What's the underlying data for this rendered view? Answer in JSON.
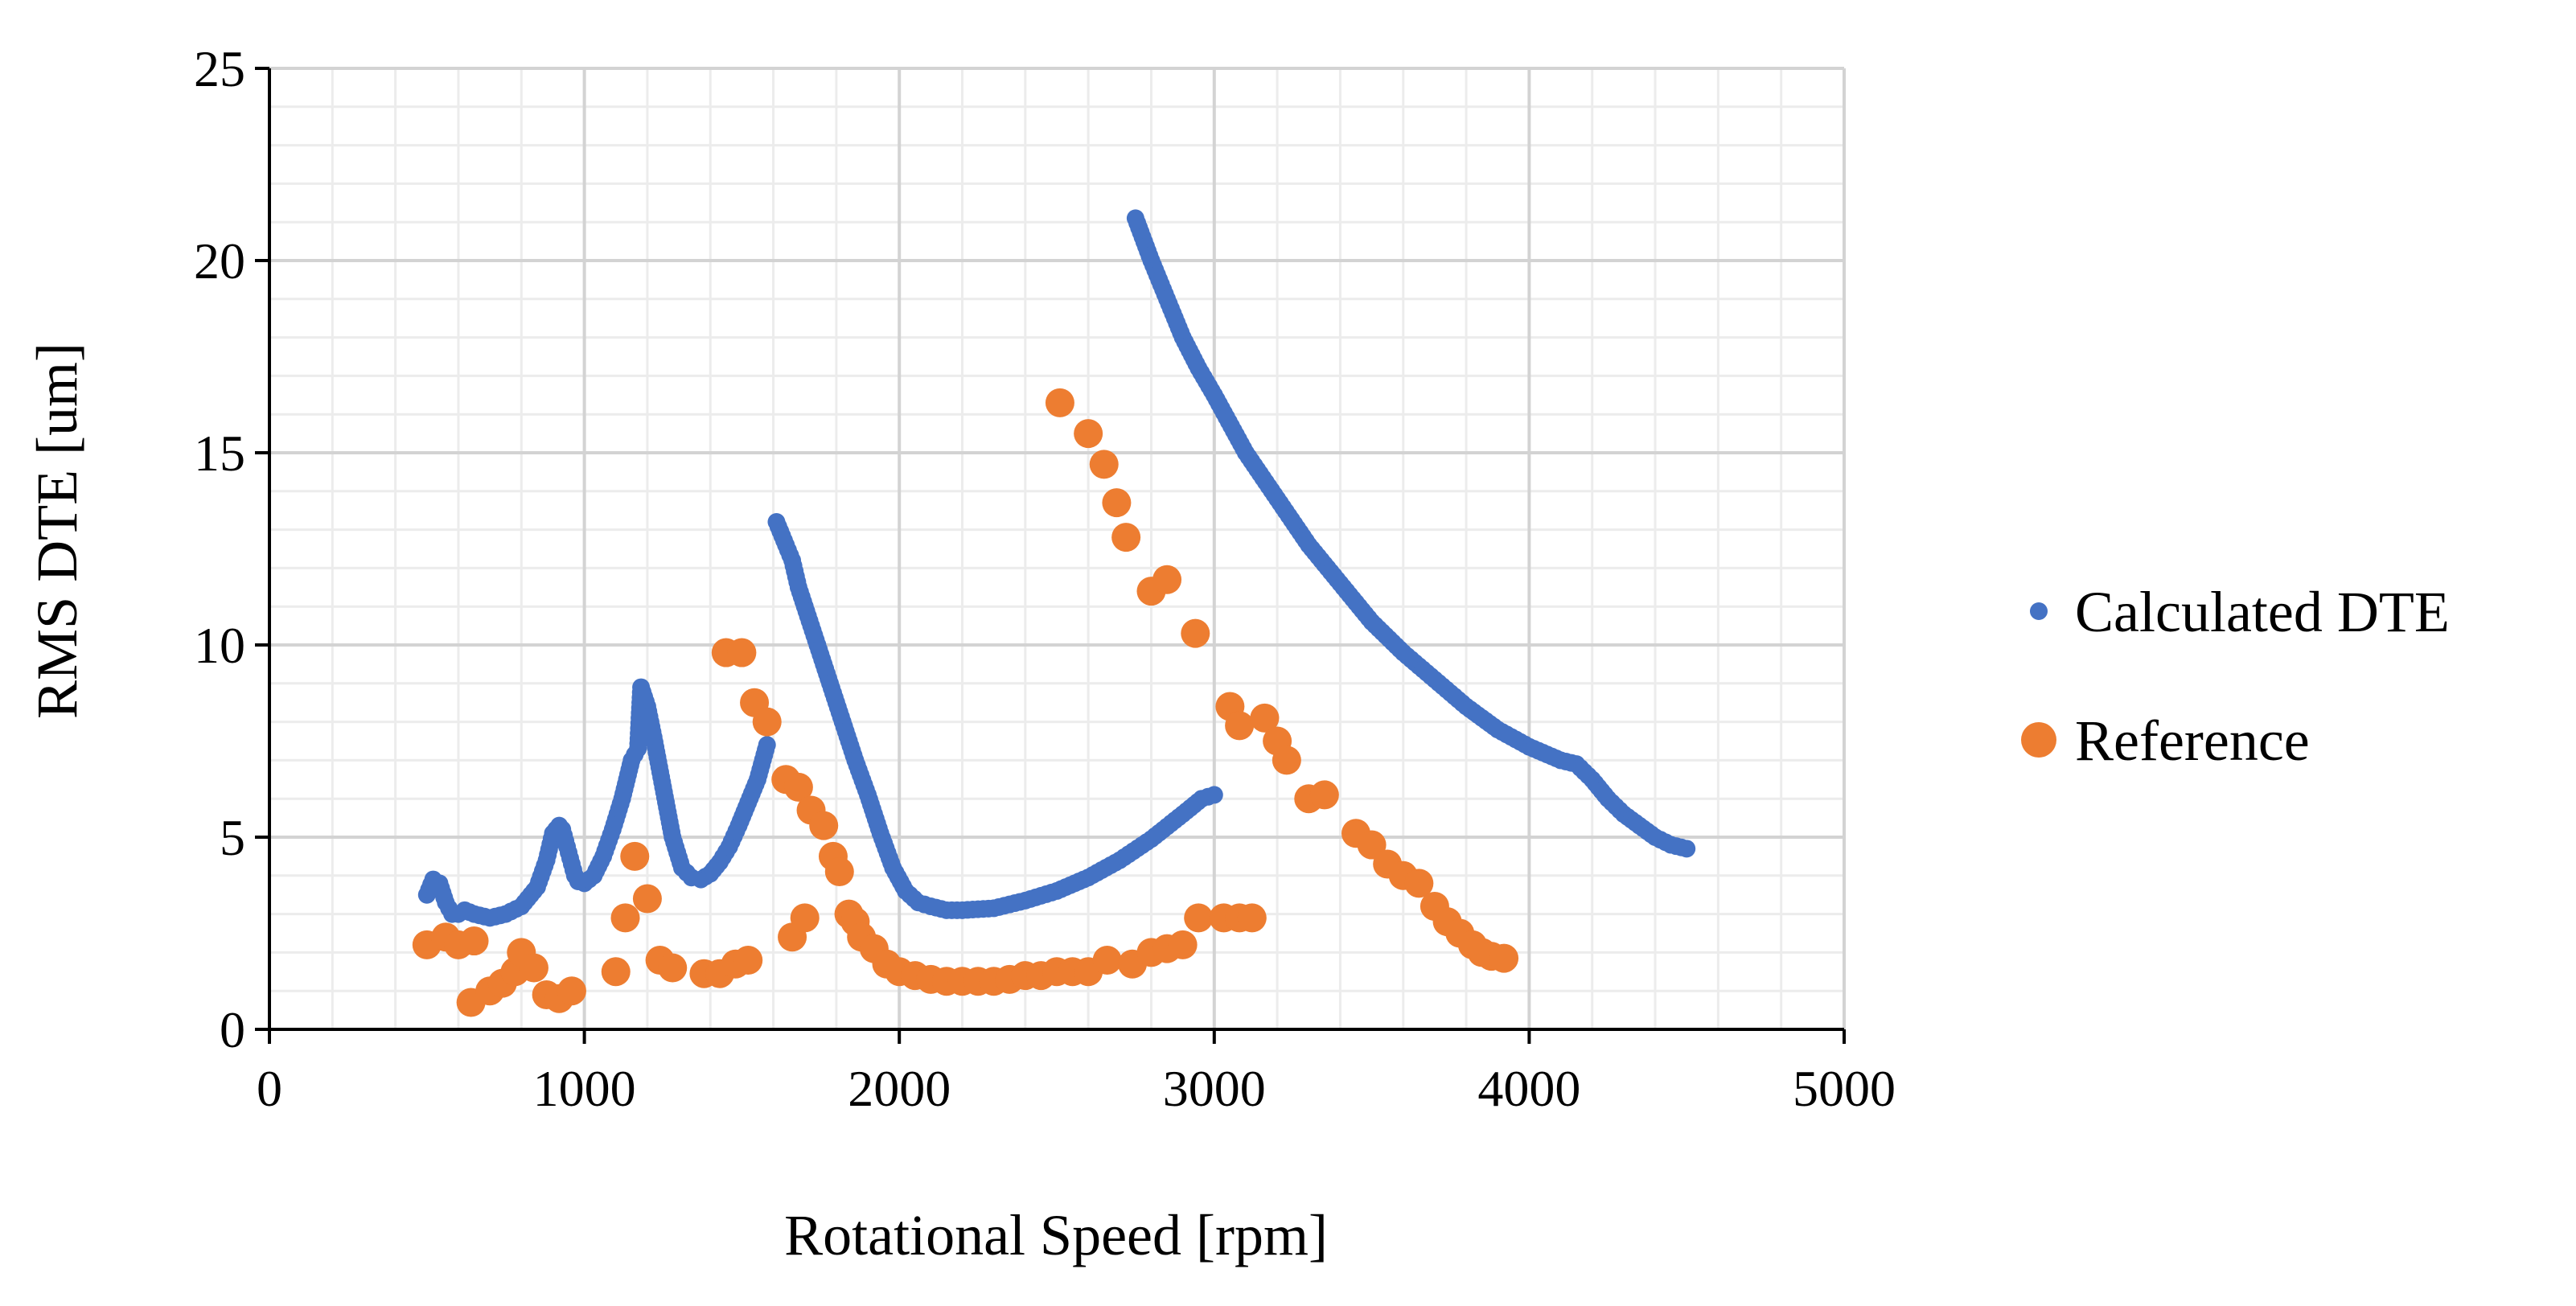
{
  "chart_data": {
    "type": "scatter",
    "title": "",
    "xlabel": "Rotational Speed [rpm]",
    "ylabel": "RMS DTE [um]",
    "xlim": [
      0,
      5000
    ],
    "ylim": [
      0,
      25
    ],
    "x_ticks": [
      0,
      1000,
      2000,
      3000,
      4000,
      5000
    ],
    "y_ticks": [
      0,
      5,
      10,
      15,
      20,
      25
    ],
    "x_tick_labels": [
      "0",
      "1000",
      "2000",
      "3000",
      "4000",
      "5000"
    ],
    "y_tick_labels": [
      "0",
      "5",
      "10",
      "15",
      "20",
      "25"
    ],
    "grid": "major and minor",
    "legend_position": "right",
    "series": [
      {
        "name": "Calculated DTE",
        "color": "#4472C4",
        "marker": "small-dot",
        "x": [
          500,
          520,
          540,
          560,
          580,
          600,
          620,
          650,
          700,
          750,
          800,
          850,
          880,
          900,
          920,
          930,
          950,
          970,
          980,
          1000,
          1030,
          1060,
          1090,
          1120,
          1150,
          1170,
          1180,
          1200,
          1220,
          1250,
          1280,
          1310,
          1340,
          1370,
          1400,
          1430,
          1460,
          1490,
          1520,
          1550,
          1580,
          1610,
          1640,
          1660,
          1680,
          1700,
          1740,
          1780,
          1820,
          1860,
          1900,
          1940,
          1980,
          2020,
          2060,
          2100,
          2150,
          2200,
          2300,
          2400,
          2500,
          2600,
          2700,
          2800,
          2900,
          2960,
          3000,
          2750,
          2800,
          2850,
          2900,
          2950,
          3000,
          3100,
          3200,
          3300,
          3400,
          3500,
          3600,
          3700,
          3800,
          3900,
          4000,
          4100,
          4150,
          4200,
          4250,
          4300,
          4350,
          4400,
          4450,
          4500
        ],
        "y": [
          3.5,
          3.9,
          3.8,
          3.3,
          3.0,
          3.0,
          3.1,
          3.0,
          2.9,
          3.0,
          3.2,
          3.7,
          4.4,
          5.1,
          5.3,
          5.2,
          4.6,
          4.0,
          3.85,
          3.8,
          4.0,
          4.5,
          5.2,
          6.0,
          7.0,
          7.3,
          8.9,
          8.4,
          7.6,
          6.3,
          5.0,
          4.2,
          3.95,
          3.9,
          4.05,
          4.35,
          4.75,
          5.3,
          5.9,
          6.5,
          7.4,
          13.2,
          12.6,
          12.2,
          11.5,
          11.0,
          10.0,
          9.0,
          8.0,
          7.0,
          6.1,
          5.1,
          4.2,
          3.6,
          3.3,
          3.2,
          3.1,
          3.1,
          3.15,
          3.35,
          3.6,
          3.95,
          4.4,
          4.95,
          5.6,
          6.0,
          6.1,
          21.1,
          20.0,
          19.0,
          18.0,
          17.2,
          16.5,
          15.0,
          13.8,
          12.6,
          11.6,
          10.6,
          9.8,
          9.1,
          8.4,
          7.8,
          7.35,
          7.0,
          6.9,
          6.5,
          6.0,
          5.6,
          5.3,
          5.0,
          4.8,
          4.7
        ]
      },
      {
        "name": "Reference",
        "color": "#ED7D31",
        "marker": "large-dot",
        "x": [
          500,
          560,
          600,
          650,
          640,
          700,
          740,
          780,
          800,
          840,
          880,
          920,
          960,
          1100,
          1130,
          1160,
          1200,
          1240,
          1280,
          1380,
          1430,
          1450,
          1480,
          1500,
          1520,
          1540,
          1580,
          1640,
          1660,
          1680,
          1700,
          1720,
          1760,
          1790,
          1810,
          1840,
          1860,
          1880,
          1920,
          1960,
          2000,
          2050,
          2100,
          2150,
          2200,
          2250,
          2300,
          2350,
          2400,
          2450,
          2500,
          2550,
          2600,
          2660,
          2740,
          2800,
          2850,
          2900,
          2950,
          3030,
          3080,
          3120,
          2510,
          2600,
          2650,
          2690,
          2720,
          2800,
          2850,
          2940,
          3050,
          3080,
          3160,
          3200,
          3230,
          3300,
          3350,
          3450,
          3500,
          3550,
          3600,
          3650,
          3700,
          3740,
          3780,
          3820,
          3850,
          3880,
          3920
        ],
        "y": [
          2.2,
          2.4,
          2.2,
          2.3,
          0.7,
          1.0,
          1.2,
          1.5,
          2.0,
          1.6,
          0.9,
          0.8,
          1.0,
          1.5,
          2.9,
          4.5,
          3.4,
          1.8,
          1.6,
          1.45,
          1.45,
          9.8,
          1.7,
          9.8,
          1.8,
          8.5,
          8.0,
          6.5,
          2.4,
          6.3,
          2.9,
          5.7,
          5.3,
          4.5,
          4.1,
          3.0,
          2.8,
          2.4,
          2.1,
          1.7,
          1.5,
          1.4,
          1.3,
          1.25,
          1.25,
          1.25,
          1.25,
          1.3,
          1.4,
          1.4,
          1.5,
          1.5,
          1.5,
          1.8,
          1.7,
          2.0,
          2.1,
          2.2,
          2.9,
          2.9,
          2.9,
          2.9,
          16.3,
          15.5,
          14.7,
          13.7,
          12.8,
          11.4,
          11.7,
          10.3,
          8.4,
          7.9,
          8.1,
          7.5,
          7.0,
          6.0,
          6.1,
          5.1,
          4.8,
          4.3,
          4.0,
          3.8,
          3.2,
          2.8,
          2.5,
          2.2,
          2.0,
          1.9,
          1.85
        ]
      }
    ]
  }
}
